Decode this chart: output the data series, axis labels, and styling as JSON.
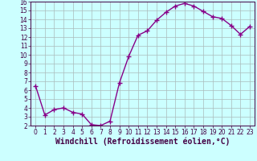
{
  "x": [
    0,
    1,
    2,
    3,
    4,
    5,
    6,
    7,
    8,
    9,
    10,
    11,
    12,
    13,
    14,
    15,
    16,
    17,
    18,
    19,
    20,
    21,
    22,
    23
  ],
  "y": [
    6.5,
    3.2,
    3.8,
    4.0,
    3.5,
    3.3,
    2.1,
    2.0,
    2.5,
    6.8,
    9.8,
    12.2,
    12.7,
    13.9,
    14.8,
    15.5,
    15.8,
    15.5,
    14.9,
    14.3,
    14.1,
    13.3,
    12.3,
    13.2
  ],
  "line_color": "#880088",
  "marker": "+",
  "marker_size": 4,
  "bg_color": "#ccffff",
  "grid_color": "#aabbbb",
  "xlabel": "Windchill (Refroidissement éolien,°C)",
  "xlabel_fontsize": 7,
  "ylim": [
    2,
    16
  ],
  "xlim": [
    -0.5,
    23.5
  ],
  "yticks": [
    2,
    3,
    4,
    5,
    6,
    7,
    8,
    9,
    10,
    11,
    12,
    13,
    14,
    15,
    16
  ],
  "xticks": [
    0,
    1,
    2,
    3,
    4,
    5,
    6,
    7,
    8,
    9,
    10,
    11,
    12,
    13,
    14,
    15,
    16,
    17,
    18,
    19,
    20,
    21,
    22,
    23
  ],
  "tick_fontsize": 5.5,
  "line_width": 1.0,
  "spine_color": "#440044",
  "tick_color": "#440044"
}
